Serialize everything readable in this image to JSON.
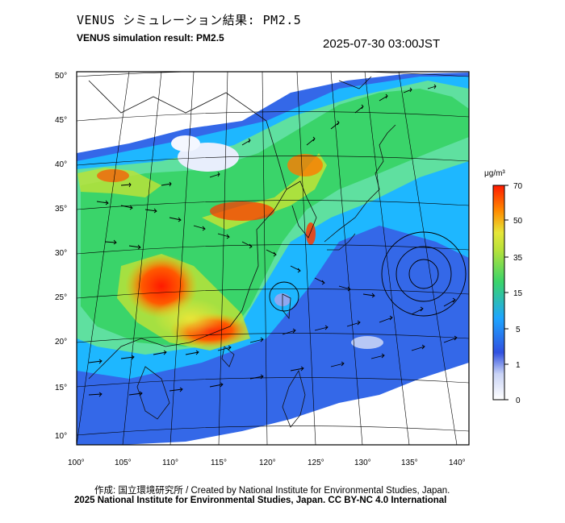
{
  "header": {
    "title_jp": "VENUS シミュレーション結果: PM2.5",
    "title_en": "VENUS simulation result: PM2.5",
    "timestamp": "2025-07-30 03:00JST"
  },
  "map": {
    "lat_labels": [
      "50°",
      "45°",
      "40°",
      "35°",
      "30°",
      "25°",
      "20°",
      "15°",
      "10°"
    ],
    "lon_labels": [
      "100°",
      "105°",
      "110°",
      "115°",
      "120°",
      "125°",
      "130°",
      "135°",
      "140°"
    ]
  },
  "colorbar": {
    "unit": "μg/m³",
    "ticks": [
      "70",
      "50",
      "35",
      "15",
      "5",
      "1",
      "0"
    ],
    "colors": [
      "#ffffff",
      "#3050e0",
      "#1ea5ff",
      "#3ad46a",
      "#e6e639",
      "#ff8c00",
      "#ff1a00"
    ]
  },
  "footer": {
    "credit": "作成: 国立環境研究所 / Created by National Institute for Environmental Studies, Japan.",
    "license": "2025 National Institute for Environmental Studies, Japan. CC BY-NC 4.0 International"
  }
}
